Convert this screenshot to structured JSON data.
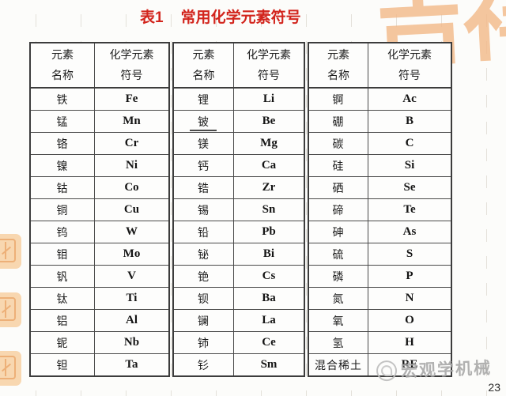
{
  "title": {
    "label": "表1",
    "text": "常用化学元素符号"
  },
  "page_number": "23",
  "watermark": {
    "text": "宏观学机械"
  },
  "decor": {
    "top_right_calligraphy": "吉祥"
  },
  "colors": {
    "title_red": "#d2241c",
    "table_border": "#3c3c3c",
    "decor_orange": "#f3b988",
    "seal_orange": "#f8d3a8",
    "watermark_gray": "#a9a9a9",
    "paper": "#fcfcfa"
  },
  "table": {
    "header": {
      "name_line1": "元素",
      "name_line2": "名称",
      "symbol_line1": "化学元素",
      "symbol_line2": "符号"
    },
    "groups": [
      {
        "rows": [
          {
            "name": "铁",
            "symbol": "Fe"
          },
          {
            "name": "锰",
            "symbol": "Mn"
          },
          {
            "name": "铬",
            "symbol": "Cr"
          },
          {
            "name": "镍",
            "symbol": "Ni"
          },
          {
            "name": "钴",
            "symbol": "Co"
          },
          {
            "name": "铜",
            "symbol": "Cu"
          },
          {
            "name": "钨",
            "symbol": "W"
          },
          {
            "name": "钼",
            "symbol": "Mo"
          },
          {
            "name": "钒",
            "symbol": "V"
          },
          {
            "name": "钛",
            "symbol": "Ti"
          },
          {
            "name": "铝",
            "symbol": "Al"
          },
          {
            "name": "铌",
            "symbol": "Nb"
          },
          {
            "name": "钽",
            "symbol": "Ta"
          }
        ]
      },
      {
        "rows": [
          {
            "name": "锂",
            "symbol": "Li"
          },
          {
            "name": "铍",
            "symbol": "Be"
          },
          {
            "name": "镁",
            "symbol": "Mg"
          },
          {
            "name": "钙",
            "symbol": "Ca"
          },
          {
            "name": "锆",
            "symbol": "Zr"
          },
          {
            "name": "锡",
            "symbol": "Sn"
          },
          {
            "name": "铅",
            "symbol": "Pb"
          },
          {
            "name": "铋",
            "symbol": "Bi"
          },
          {
            "name": "铯",
            "symbol": "Cs"
          },
          {
            "name": "钡",
            "symbol": "Ba"
          },
          {
            "name": "镧",
            "symbol": "La"
          },
          {
            "name": "铈",
            "symbol": "Ce"
          },
          {
            "name": "钐",
            "symbol": "Sm"
          }
        ]
      },
      {
        "rows": [
          {
            "name": "锕",
            "symbol": "Ac"
          },
          {
            "name": "硼",
            "symbol": "B"
          },
          {
            "name": "碳",
            "symbol": "C"
          },
          {
            "name": "硅",
            "symbol": "Si"
          },
          {
            "name": "硒",
            "symbol": "Se"
          },
          {
            "name": "碲",
            "symbol": "Te"
          },
          {
            "name": "砷",
            "symbol": "As"
          },
          {
            "name": "硫",
            "symbol": "S"
          },
          {
            "name": "磷",
            "symbol": "P"
          },
          {
            "name": "氮",
            "symbol": "N"
          },
          {
            "name": "氧",
            "symbol": "O"
          },
          {
            "name": "氢",
            "symbol": "H"
          },
          {
            "name": "混合稀土",
            "symbol": "RE"
          }
        ]
      }
    ]
  }
}
